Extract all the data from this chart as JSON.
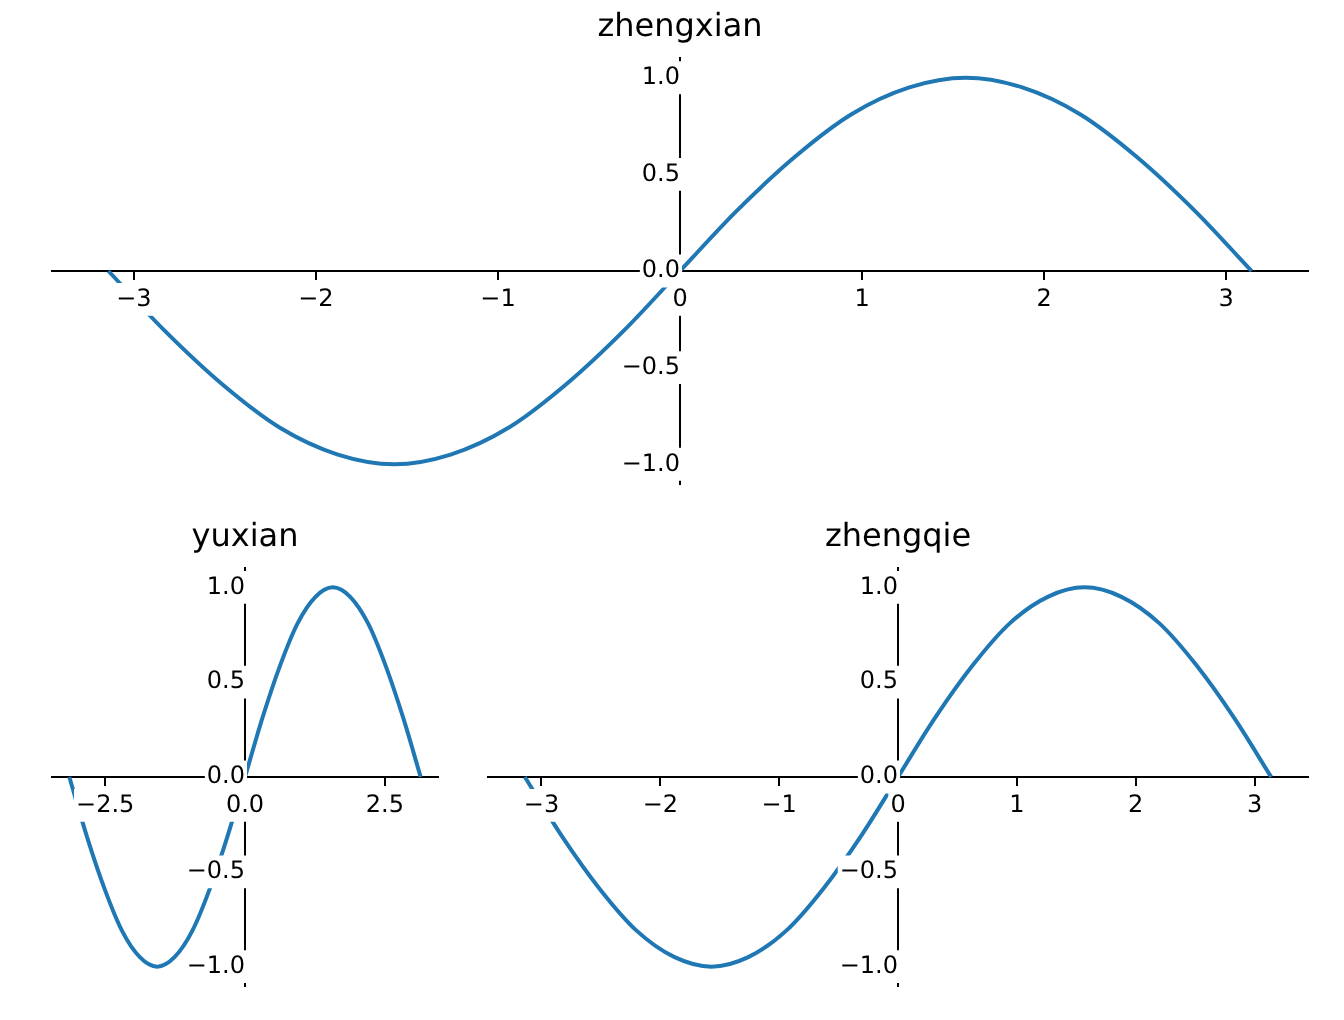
{
  "chart_data": [
    {
      "type": "line",
      "title": "zhengxian",
      "x": [
        -3.14,
        -2.83,
        -2.51,
        -2.2,
        -1.88,
        -1.57,
        -1.26,
        -0.94,
        -0.63,
        -0.31,
        0,
        0.31,
        0.63,
        0.94,
        1.26,
        1.57,
        1.88,
        2.2,
        2.51,
        2.83,
        3.14
      ],
      "series": [
        {
          "color": "#1f77b4",
          "values": [
            0,
            -0.31,
            -0.59,
            -0.81,
            -0.95,
            -1,
            -0.95,
            -0.81,
            -0.59,
            -0.31,
            0,
            0.31,
            0.59,
            0.81,
            0.95,
            1,
            0.95,
            0.81,
            0.59,
            0.31,
            0
          ]
        }
      ],
      "xlim": [
        -3.45,
        3.45
      ],
      "ylim": [
        -1.1,
        1.1
      ],
      "xticks": [
        {
          "value": -3,
          "label": "−3"
        },
        {
          "value": -2,
          "label": "−2"
        },
        {
          "value": -1,
          "label": "−1"
        },
        {
          "value": 0,
          "label": "0"
        },
        {
          "value": 1,
          "label": "1"
        },
        {
          "value": 2,
          "label": "2"
        },
        {
          "value": 3,
          "label": "3"
        }
      ],
      "yticks": [
        {
          "value": -1,
          "label": "−1.0"
        },
        {
          "value": -0.5,
          "label": "−0.5"
        },
        {
          "value": 0,
          "label": "0.0"
        },
        {
          "value": 0.5,
          "label": "0.5"
        },
        {
          "value": 1,
          "label": "1.0"
        }
      ]
    },
    {
      "type": "line",
      "title": "yuxian",
      "x": [
        -3.14,
        -2.83,
        -2.51,
        -2.2,
        -1.88,
        -1.57,
        -1.26,
        -0.94,
        -0.63,
        -0.31,
        0,
        0.31,
        0.63,
        0.94,
        1.26,
        1.57,
        1.88,
        2.2,
        2.51,
        2.83,
        3.14
      ],
      "series": [
        {
          "color": "#1f77b4",
          "values": [
            0,
            -0.31,
            -0.59,
            -0.81,
            -0.95,
            -1,
            -0.95,
            -0.81,
            -0.59,
            -0.31,
            0,
            0.31,
            0.59,
            0.81,
            0.95,
            1,
            0.95,
            0.81,
            0.59,
            0.31,
            0
          ]
        }
      ],
      "xlim": [
        -3.45,
        3.45
      ],
      "ylim": [
        -1.1,
        1.1
      ],
      "xticks": [
        {
          "value": -2.5,
          "label": "−2.5"
        },
        {
          "value": 0,
          "label": "0.0"
        },
        {
          "value": 2.5,
          "label": "2.5"
        }
      ],
      "yticks": [
        {
          "value": -1,
          "label": "−1.0"
        },
        {
          "value": -0.5,
          "label": "−0.5"
        },
        {
          "value": 0,
          "label": "0.0"
        },
        {
          "value": 0.5,
          "label": "0.5"
        },
        {
          "value": 1,
          "label": "1.0"
        }
      ]
    },
    {
      "type": "line",
      "title": "zhengqie",
      "x": [
        -3.14,
        -2.83,
        -2.51,
        -2.2,
        -1.88,
        -1.57,
        -1.26,
        -0.94,
        -0.63,
        -0.31,
        0,
        0.31,
        0.63,
        0.94,
        1.26,
        1.57,
        1.88,
        2.2,
        2.51,
        2.83,
        3.14
      ],
      "series": [
        {
          "color": "#1f77b4",
          "values": [
            0,
            -0.31,
            -0.59,
            -0.81,
            -0.95,
            -1,
            -0.95,
            -0.81,
            -0.59,
            -0.31,
            0,
            0.31,
            0.59,
            0.81,
            0.95,
            1,
            0.95,
            0.81,
            0.59,
            0.31,
            0
          ]
        }
      ],
      "xlim": [
        -3.45,
        3.45
      ],
      "ylim": [
        -1.1,
        1.1
      ],
      "xticks": [
        {
          "value": -3,
          "label": "−3"
        },
        {
          "value": -2,
          "label": "−2"
        },
        {
          "value": -1,
          "label": "−1"
        },
        {
          "value": 0,
          "label": "0"
        },
        {
          "value": 1,
          "label": "1"
        },
        {
          "value": 2,
          "label": "2"
        },
        {
          "value": 3,
          "label": "3"
        }
      ],
      "yticks": [
        {
          "value": -1,
          "label": "−1.0"
        },
        {
          "value": -0.5,
          "label": "−0.5"
        },
        {
          "value": 0,
          "label": "0.0"
        },
        {
          "value": 0.5,
          "label": "0.5"
        },
        {
          "value": 1,
          "label": "1.0"
        }
      ]
    }
  ]
}
